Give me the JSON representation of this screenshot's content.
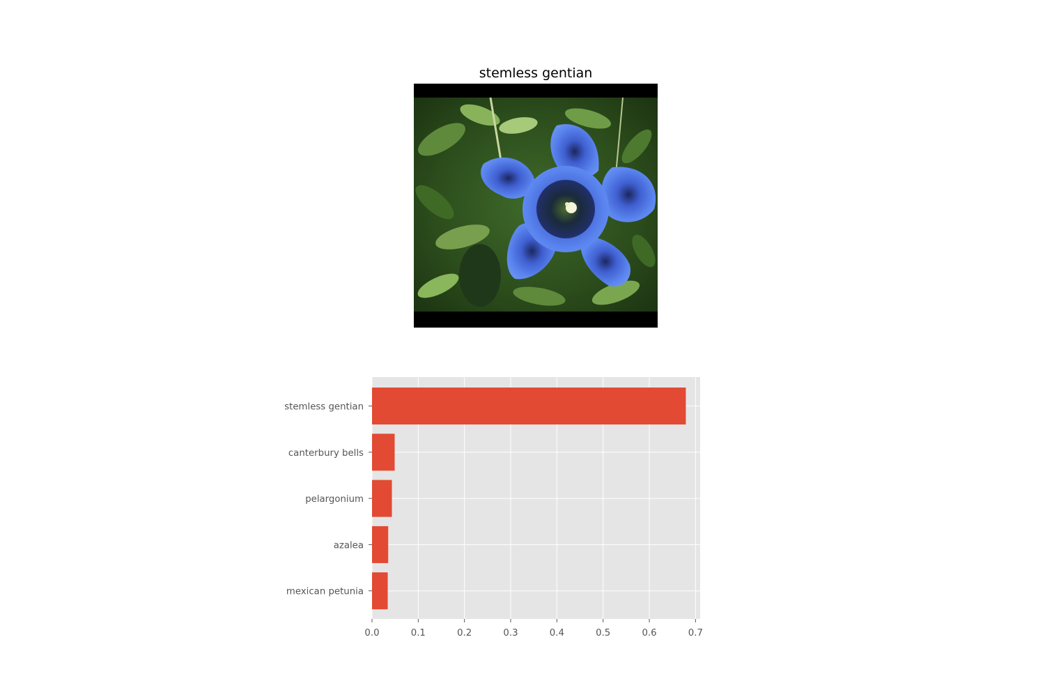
{
  "image_panel": {
    "title": "stemless gentian",
    "subject": "blue gentian flower photo"
  },
  "colors": {
    "bar": "#E24A33",
    "plot_background": "#E5E5E5",
    "grid": "#FFFFFF",
    "tick_text": "#555555",
    "letterbox": "#000000"
  },
  "chart_data": {
    "type": "bar",
    "orientation": "horizontal",
    "categories": [
      "stemless gentian",
      "canterbury bells",
      "pelargonium",
      "azalea",
      "mexican petunia"
    ],
    "values": [
      0.679,
      0.049,
      0.043,
      0.035,
      0.034
    ],
    "xlim": [
      0.0,
      0.71
    ],
    "xticks": [
      "0.0",
      "0.1",
      "0.2",
      "0.3",
      "0.4",
      "0.5",
      "0.6",
      "0.7"
    ],
    "grid": true,
    "style": "ggplot"
  }
}
